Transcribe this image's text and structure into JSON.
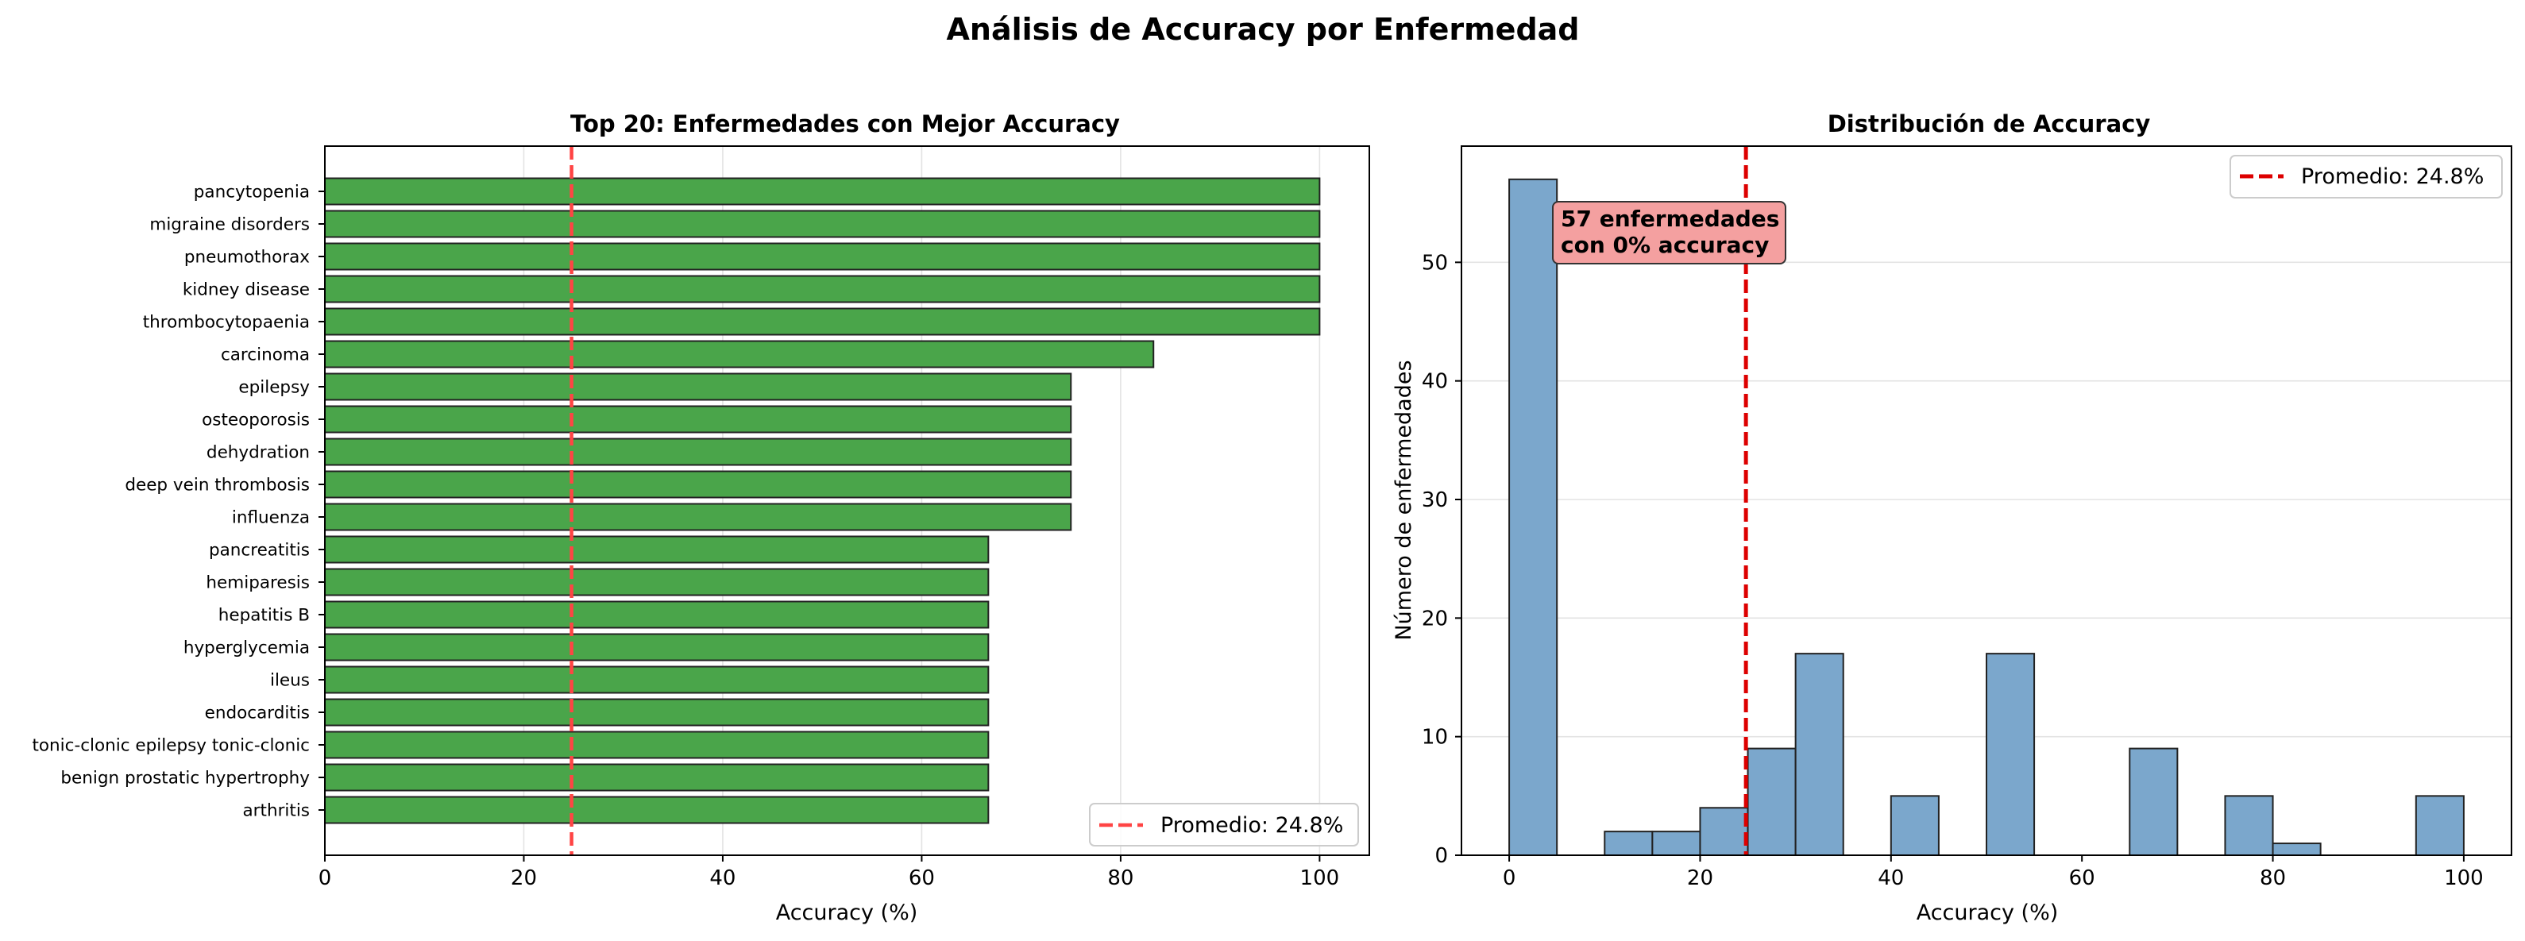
{
  "suptitle": "Análisis de Accuracy por Enfermedad",
  "chart_data": [
    {
      "type": "bar",
      "orientation": "horizontal",
      "title": "Top 20: Enfermedades con Mejor Accuracy",
      "xlabel": "Accuracy (%)",
      "ylabel": "",
      "xlim": [
        0,
        105
      ],
      "xticks": [
        0,
        20,
        40,
        60,
        80,
        100
      ],
      "grid": true,
      "bar_color": "#4aa54a",
      "categories": [
        "pancytopenia",
        "migraine disorders",
        "pneumothorax",
        "kidney disease",
        "thrombocytopaenia",
        "carcinoma",
        "epilepsy",
        "osteoporosis",
        "dehydration",
        "deep vein thrombosis",
        "influenza",
        "pancreatitis",
        "hemiparesis",
        "hepatitis B",
        "hyperglycemia",
        "ileus",
        "endocarditis",
        "tonic-clonic epilepsy tonic-clonic ",
        "benign prostatic hypertrophy",
        "arthritis"
      ],
      "values": [
        100,
        100,
        100,
        100,
        100,
        83.3,
        75,
        75,
        75,
        75,
        75,
        66.7,
        66.7,
        66.7,
        66.7,
        66.7,
        66.7,
        66.7,
        66.7,
        66.7
      ],
      "reference_line": {
        "value": 24.8,
        "label": "Promedio: 24.8%",
        "color": "#ff4444",
        "style": "dashed"
      },
      "legend_position": "lower-right"
    },
    {
      "type": "histogram",
      "title": "Distribución de Accuracy",
      "xlabel": "Accuracy (%)",
      "ylabel": "Número de enfermedades",
      "xlim": [
        -5,
        105
      ],
      "ylim": [
        0,
        59.8
      ],
      "xticks": [
        0,
        20,
        40,
        60,
        80,
        100
      ],
      "yticks": [
        0,
        10,
        20,
        30,
        40,
        50
      ],
      "grid": true,
      "bar_color": "#7ba7cc",
      "bin_width": 5,
      "bins": [
        {
          "x0": 0,
          "x1": 5,
          "count": 57
        },
        {
          "x0": 5,
          "x1": 10,
          "count": 0
        },
        {
          "x0": 10,
          "x1": 15,
          "count": 2
        },
        {
          "x0": 15,
          "x1": 20,
          "count": 2
        },
        {
          "x0": 20,
          "x1": 25,
          "count": 4
        },
        {
          "x0": 25,
          "x1": 30,
          "count": 9
        },
        {
          "x0": 30,
          "x1": 35,
          "count": 17
        },
        {
          "x0": 35,
          "x1": 40,
          "count": 0
        },
        {
          "x0": 40,
          "x1": 45,
          "count": 5
        },
        {
          "x0": 45,
          "x1": 50,
          "count": 0
        },
        {
          "x0": 50,
          "x1": 55,
          "count": 17
        },
        {
          "x0": 55,
          "x1": 60,
          "count": 0
        },
        {
          "x0": 60,
          "x1": 65,
          "count": 0
        },
        {
          "x0": 65,
          "x1": 70,
          "count": 9
        },
        {
          "x0": 70,
          "x1": 75,
          "count": 0
        },
        {
          "x0": 75,
          "x1": 80,
          "count": 5
        },
        {
          "x0": 80,
          "x1": 85,
          "count": 1
        },
        {
          "x0": 85,
          "x1": 90,
          "count": 0
        },
        {
          "x0": 90,
          "x1": 95,
          "count": 0
        },
        {
          "x0": 95,
          "x1": 100,
          "count": 5
        }
      ],
      "reference_line": {
        "value": 24.8,
        "label": "Promedio: 24.8%",
        "color": "#dd0000",
        "style": "dashed"
      },
      "annotation": {
        "lines": [
          "57 enfermedades",
          "con 0% accuracy"
        ],
        "bg_color": "#f4a0a0"
      },
      "legend_position": "upper-right"
    }
  ]
}
